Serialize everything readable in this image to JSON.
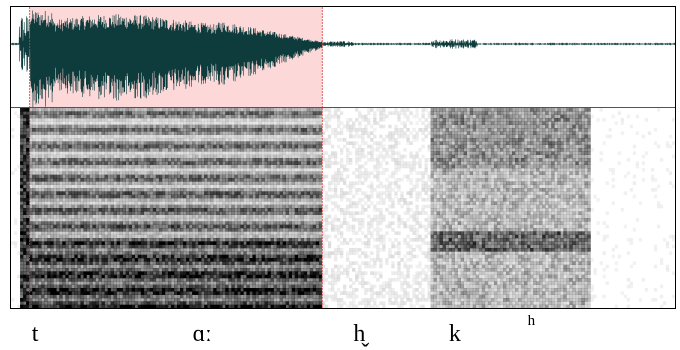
{
  "selection": {
    "start_ms": 18,
    "end_ms": 300,
    "fill": "#fdd8d8",
    "edge_color": "#d83c3c"
  },
  "colors": {
    "waveform": "#0e3b3b",
    "divider": "#2a5f86",
    "spectrogram": "#000000"
  },
  "timeline_ms": 640,
  "phones": [
    {
      "id": "t",
      "label": "t",
      "time_ms": 20,
      "sup": false
    },
    {
      "id": "aa",
      "label": "ɑː",
      "time_ms": 175,
      "sup": false
    },
    {
      "id": "h",
      "label": "h̬",
      "time_ms": 330,
      "sup": false
    },
    {
      "id": "k",
      "label": "k",
      "time_ms": 422,
      "sup": false
    },
    {
      "id": "asp",
      "label": "h",
      "time_ms": 498,
      "sup": true
    }
  ]
}
